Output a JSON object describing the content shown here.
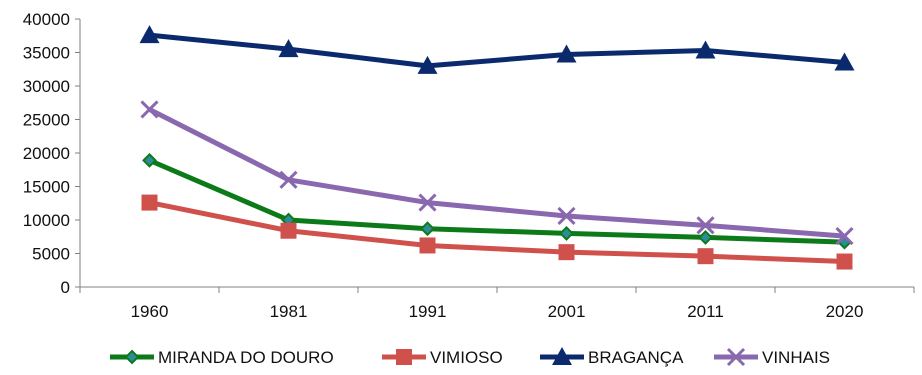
{
  "chart_data": {
    "type": "line",
    "title": "",
    "xlabel": "",
    "ylabel": "",
    "categories": [
      "1960",
      "1981",
      "1991",
      "2001",
      "2011",
      "2020"
    ],
    "ylim": [
      0,
      40000
    ],
    "yticks": [
      0,
      5000,
      10000,
      15000,
      20000,
      25000,
      30000,
      35000,
      40000
    ],
    "grid": false,
    "legend_position": "bottom",
    "series": [
      {
        "name": "MIRANDA DO DOURO",
        "color": "#0d7a1a",
        "marker": "diamond",
        "values": [
          18900,
          10000,
          8700,
          8000,
          7400,
          6700
        ]
      },
      {
        "name": "VIMIOSO",
        "color": "#d0504c",
        "marker": "square",
        "values": [
          12600,
          8400,
          6200,
          5200,
          4600,
          3800
        ]
      },
      {
        "name": "BRAGANÇA",
        "color": "#0b2a6e",
        "marker": "triangle",
        "values": [
          37600,
          35500,
          33000,
          34700,
          35300,
          33500
        ]
      },
      {
        "name": "VINHAIS",
        "color": "#8a68b0",
        "marker": "x",
        "values": [
          26500,
          16000,
          12600,
          10600,
          9200,
          7600
        ]
      }
    ]
  }
}
